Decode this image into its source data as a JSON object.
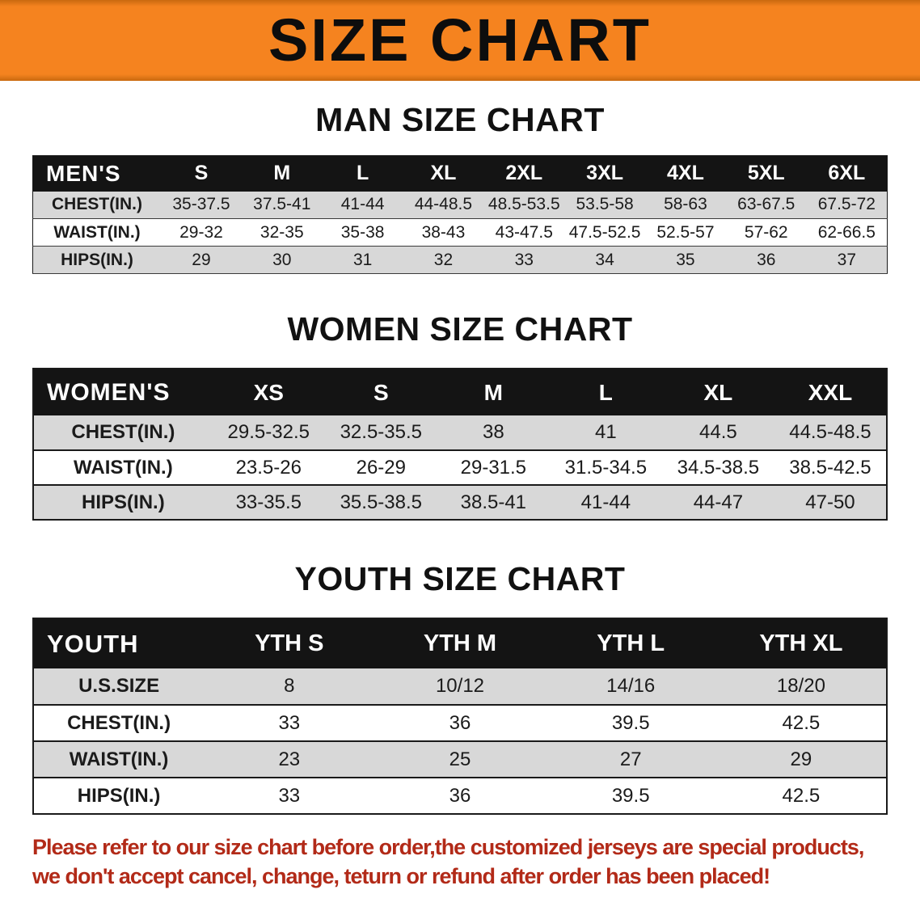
{
  "banner": {
    "title": "SIZE CHART"
  },
  "men": {
    "heading": "MAN SIZE CHART",
    "header": [
      "MEN'S",
      "S",
      "M",
      "L",
      "XL",
      "2XL",
      "3XL",
      "4XL",
      "5XL",
      "6XL"
    ],
    "rows": [
      [
        "CHEST(IN.)",
        "35-37.5",
        "37.5-41",
        "41-44",
        "44-48.5",
        "48.5-53.5",
        "53.5-58",
        "58-63",
        "63-67.5",
        "67.5-72"
      ],
      [
        "WAIST(IN.)",
        "29-32",
        "32-35",
        "35-38",
        "38-43",
        "43-47.5",
        "47.5-52.5",
        "52.5-57",
        "57-62",
        "62-66.5"
      ],
      [
        "HIPS(IN.)",
        "29",
        "30",
        "31",
        "32",
        "33",
        "34",
        "35",
        "36",
        "37"
      ]
    ]
  },
  "women": {
    "heading": "WOMEN SIZE CHART",
    "header": [
      "WOMEN'S",
      "XS",
      "S",
      "M",
      "L",
      "XL",
      "XXL"
    ],
    "rows": [
      [
        "CHEST(IN.)",
        "29.5-32.5",
        "32.5-35.5",
        "38",
        "41",
        "44.5",
        "44.5-48.5"
      ],
      [
        "WAIST(IN.)",
        "23.5-26",
        "26-29",
        "29-31.5",
        "31.5-34.5",
        "34.5-38.5",
        "38.5-42.5"
      ],
      [
        "HIPS(IN.)",
        "33-35.5",
        "35.5-38.5",
        "38.5-41",
        "41-44",
        "44-47",
        "47-50"
      ]
    ]
  },
  "youth": {
    "heading": "YOUTH SIZE CHART",
    "header": [
      "YOUTH",
      "YTH S",
      "YTH M",
      "YTH L",
      "YTH XL"
    ],
    "rows": [
      [
        "U.S.SIZE",
        "8",
        "10/12",
        "14/16",
        "18/20"
      ],
      [
        "CHEST(IN.)",
        "33",
        "36",
        "39.5",
        "42.5"
      ],
      [
        "WAIST(IN.)",
        "23",
        "25",
        "27",
        "29"
      ],
      [
        "HIPS(IN.)",
        "33",
        "36",
        "39.5",
        "42.5"
      ]
    ]
  },
  "disclaimer": {
    "line1": "Please refer to our size chart before order,the customized jerseys are special products,",
    "line2": "we don't accept cancel, change, teturn or refund after order has been placed!"
  },
  "colors": {
    "banner_orange": "#f5831f",
    "header_black": "#141414",
    "row_gray": "#d8d8d8",
    "disclaimer_red": "#b22a18"
  }
}
